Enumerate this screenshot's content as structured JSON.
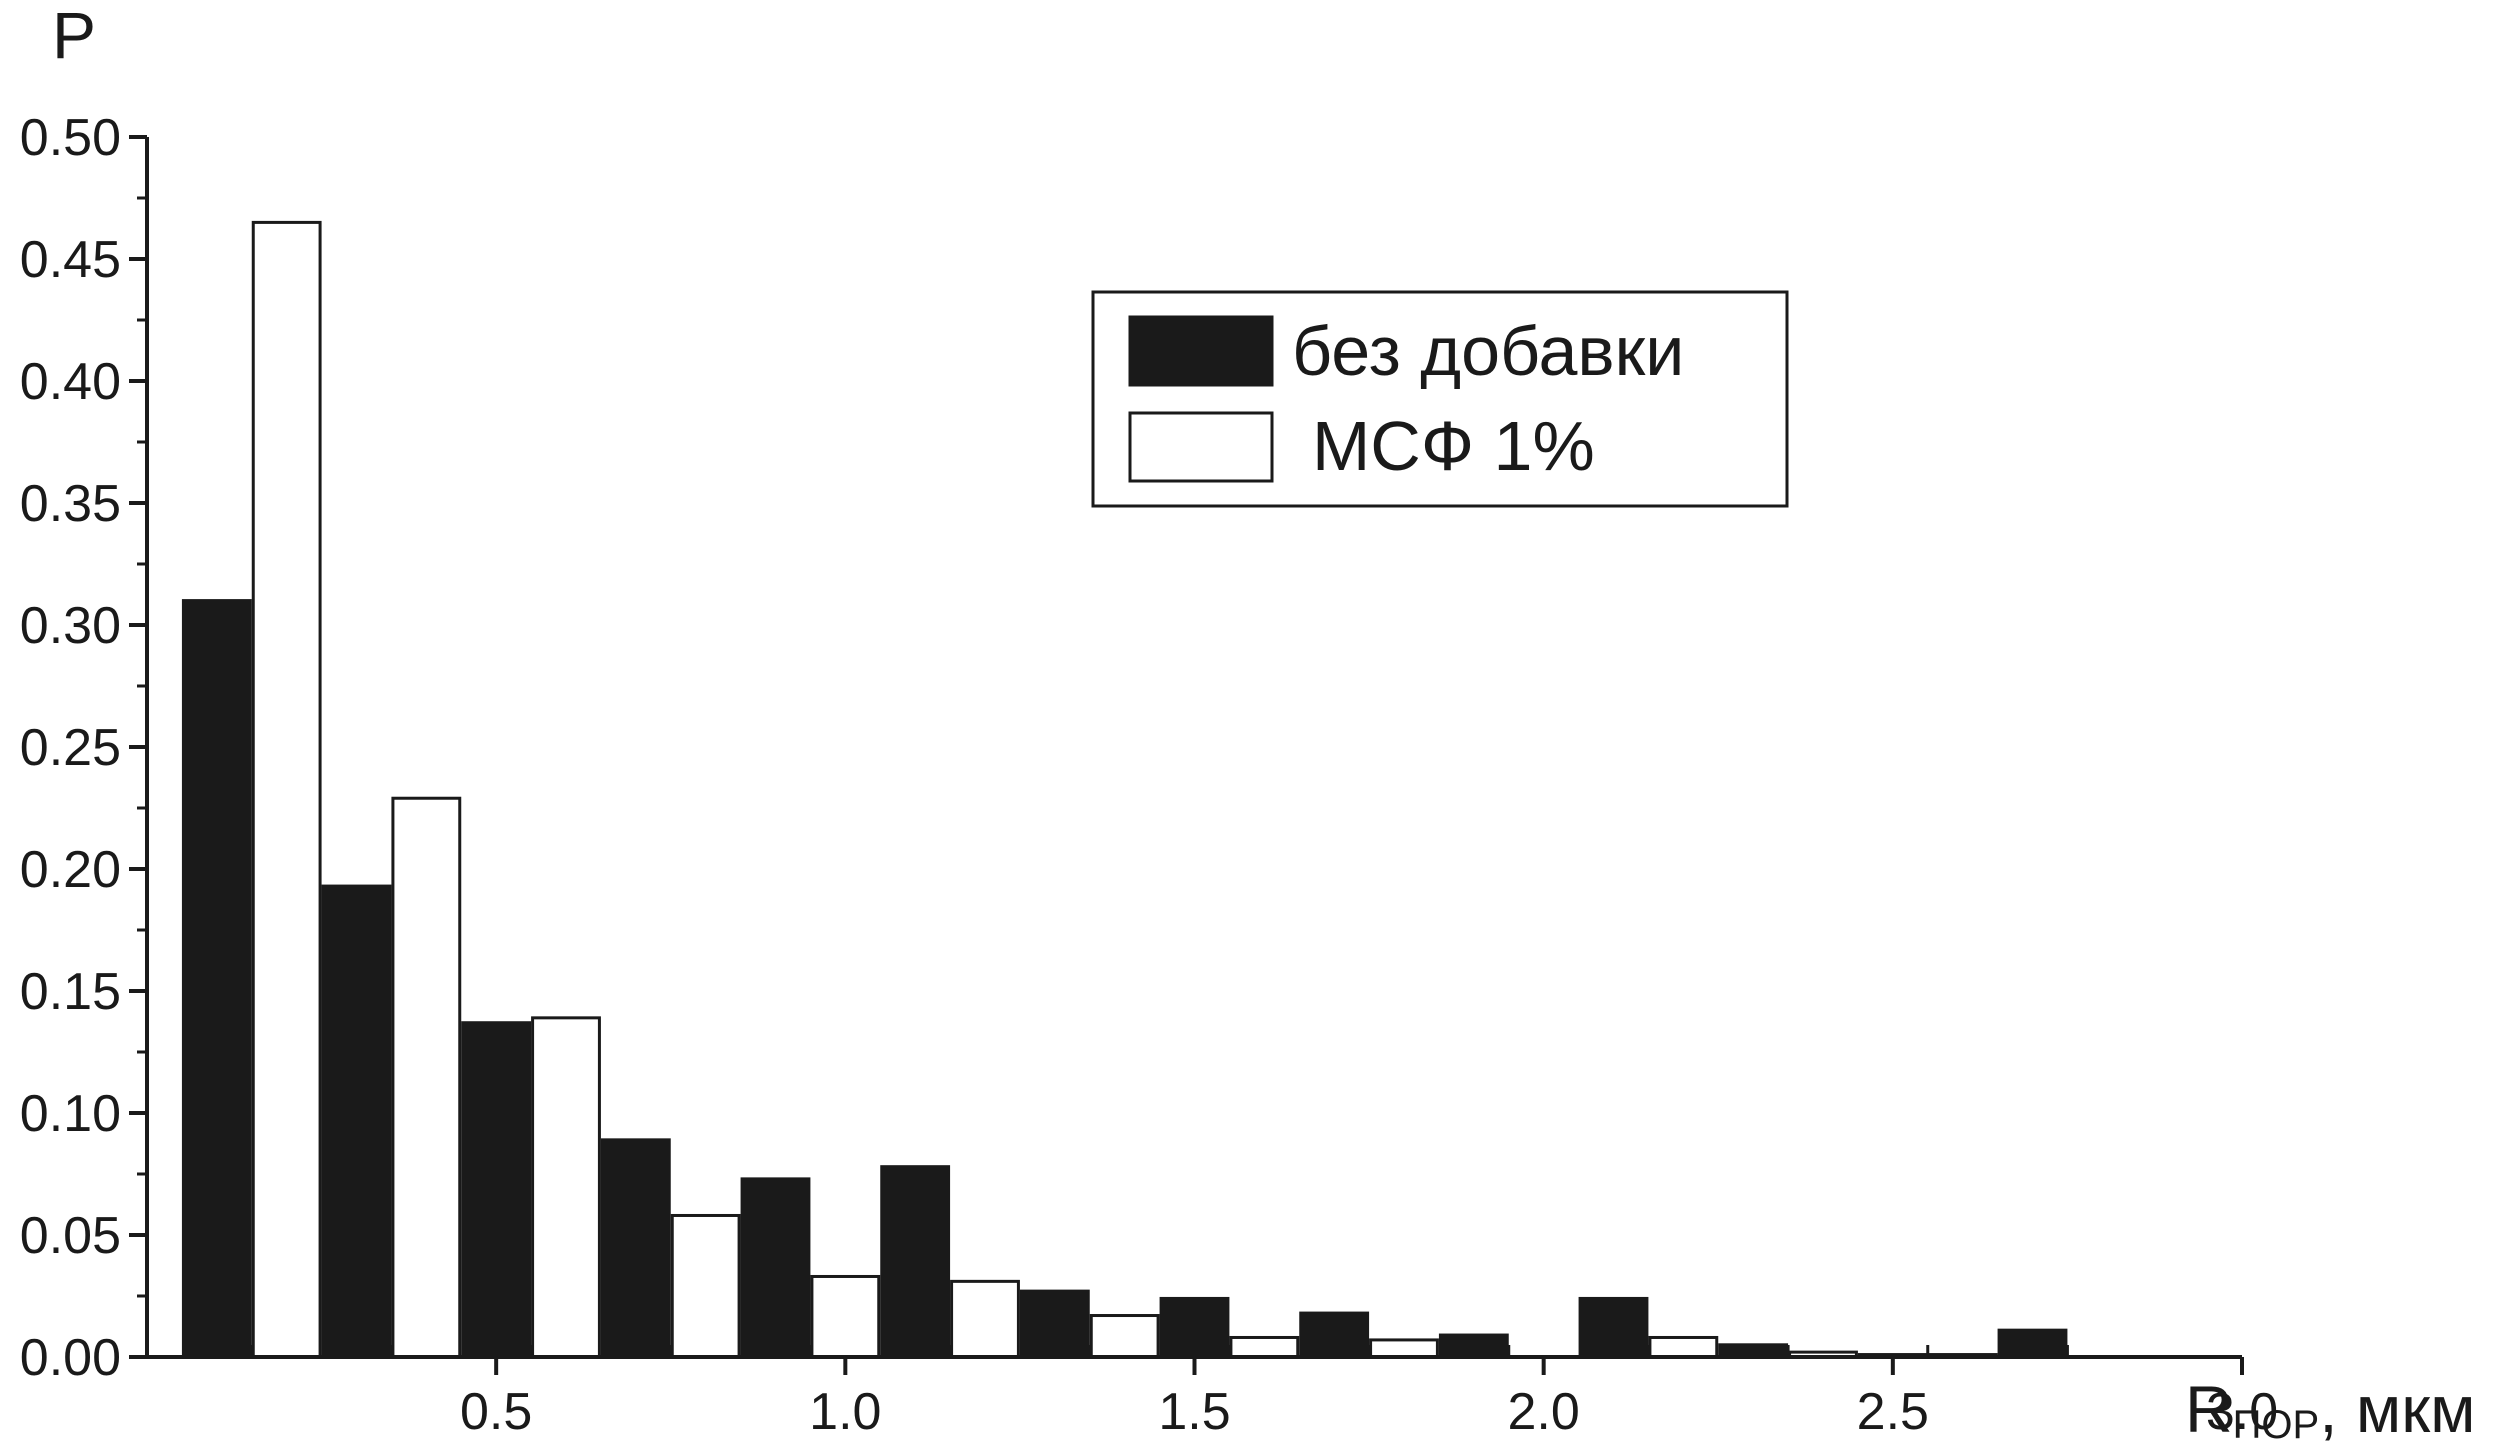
{
  "chart_data": {
    "type": "bar",
    "ylabel": "P",
    "xlabel_main": "R",
    "xlabel_sub": "ПОР",
    "xlabel_unit": ", мкм",
    "xlim": [
      0.0,
      3.0
    ],
    "ylim": [
      0.0,
      0.5
    ],
    "x_ticks": [
      0.5,
      1.0,
      1.5,
      2.0,
      2.5,
      3.0
    ],
    "x_tick_labels": [
      "0.5",
      "1.0",
      "1.5",
      "2.0",
      "2.5",
      "3.0"
    ],
    "y_ticks": [
      0.0,
      0.05,
      0.1,
      0.15,
      0.2,
      0.25,
      0.3,
      0.35,
      0.4,
      0.45,
      0.5
    ],
    "y_tick_labels": [
      "0.00",
      "0.05",
      "0.10",
      "0.15",
      "0.20",
      "0.25",
      "0.30",
      "0.35",
      "0.40",
      "0.45",
      "0.50"
    ],
    "bin_width": 0.2,
    "bin_centers": [
      0.15,
      0.35,
      0.55,
      0.75,
      0.95,
      1.15,
      1.35,
      1.55,
      1.75,
      1.95,
      2.15,
      2.35,
      2.55,
      2.75
    ],
    "series": [
      {
        "name": "без добавки",
        "fill": "#1a1a1a",
        "values": [
          0.31,
          0.193,
          0.137,
          0.089,
          0.073,
          0.078,
          0.027,
          0.024,
          0.018,
          0.009,
          0.024,
          0.005,
          0.001,
          0.011
        ]
      },
      {
        "name": "МСФ 1%",
        "fill": "#ffffff",
        "values": [
          0.465,
          0.229,
          0.139,
          0.058,
          0.033,
          0.031,
          0.017,
          0.008,
          0.007,
          0.0,
          0.008,
          0.002,
          0.001,
          0.0
        ]
      }
    ],
    "legend_position": "upper-right",
    "grid": false
  }
}
